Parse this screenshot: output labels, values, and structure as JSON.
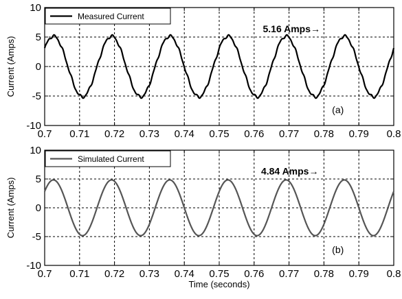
{
  "chart_data": [
    {
      "type": "line",
      "panel_label": "(a)",
      "legend": [
        "Measured Current"
      ],
      "series": [
        {
          "name": "Measured Current",
          "color": "#000000",
          "amplitude": 5.16,
          "frequency_hz": 60,
          "x_first_peak": 0.7025,
          "x": [
            0.7,
            0.8
          ],
          "noisy": true
        }
      ],
      "annotation": "5.16 Amps",
      "annotation_x": 0.7625,
      "annotation_y": 5.8,
      "arrow": "→",
      "xlim": [
        0.7,
        0.8
      ],
      "ylim": [
        -10,
        10
      ],
      "xticks": [
        0.7,
        0.71,
        0.72,
        0.73,
        0.74,
        0.75,
        0.76,
        0.77,
        0.78,
        0.79,
        0.8
      ],
      "xtick_labels": [
        "0.7",
        "0.71",
        "0.72",
        "0.73",
        "0.74",
        "0.75",
        "0.76",
        "0.77",
        "0.78",
        "0.79",
        "0.8"
      ],
      "yticks": [
        -10,
        -5,
        0,
        5,
        10
      ],
      "ytick_labels": [
        "-10",
        "-5",
        "0",
        "5",
        "10"
      ],
      "xlabel": "",
      "ylabel": "Current (Amps)",
      "grid": true,
      "legend_position": "top-left"
    },
    {
      "type": "line",
      "panel_label": "(b)",
      "legend": [
        "Simulated Current"
      ],
      "series": [
        {
          "name": "Simulated Current",
          "color": "#555555",
          "amplitude": 4.84,
          "frequency_hz": 60,
          "x_first_peak": 0.7025,
          "x": [
            0.7,
            0.8
          ],
          "noisy": false
        }
      ],
      "annotation": "4.84 Amps",
      "annotation_x": 0.762,
      "annotation_y": 5.8,
      "arrow": "→",
      "xlim": [
        0.7,
        0.8
      ],
      "ylim": [
        -10,
        10
      ],
      "xticks": [
        0.7,
        0.71,
        0.72,
        0.73,
        0.74,
        0.75,
        0.76,
        0.77,
        0.78,
        0.79,
        0.8
      ],
      "xtick_labels": [
        "0.7",
        "0.71",
        "0.72",
        "0.73",
        "0.74",
        "0.75",
        "0.76",
        "0.77",
        "0.78",
        "0.79",
        "0.8"
      ],
      "yticks": [
        -10,
        -5,
        0,
        5,
        10
      ],
      "ytick_labels": [
        "-10",
        "-5",
        "0",
        "5",
        "10"
      ],
      "xlabel": "Time (seconds)",
      "ylabel": "Current (Amps)",
      "grid": true,
      "legend_position": "top-left"
    }
  ]
}
